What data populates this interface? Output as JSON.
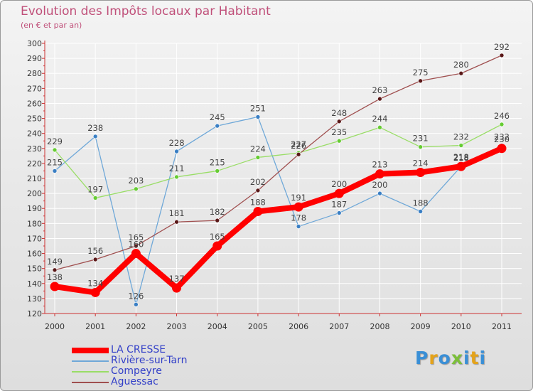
{
  "title": "Evolution des Impôts locaux par Habitant",
  "subtitle": "(en € et par an)",
  "logo": {
    "text": "Proxiti",
    "letters": [
      "P",
      "r",
      "o",
      "x",
      "i",
      "t",
      "i"
    ],
    "colors": [
      "#3a8fd6",
      "#e4a31a",
      "#3a8fd6",
      "#7cbf3a",
      "#3a8fd6",
      "#e4a31a",
      "#3a8fd6"
    ]
  },
  "chart_data": {
    "type": "line",
    "title": "Evolution des Impôts locaux par Habitant",
    "subtitle": "(en € et par an)",
    "xlabel": "",
    "ylabel": "",
    "categories": [
      "2000",
      "2001",
      "2002",
      "2003",
      "2004",
      "2005",
      "2006",
      "2007",
      "2008",
      "2009",
      "2010",
      "2011"
    ],
    "ylim": [
      120,
      300
    ],
    "yticks": [
      "120",
      "130",
      "140",
      "150",
      "160",
      "170",
      "180",
      "190",
      "200",
      "210",
      "220",
      "230",
      "240",
      "250",
      "260",
      "270",
      "280",
      "290",
      "300"
    ],
    "legend_position": "bottom-left",
    "series": [
      {
        "name": "LA CRESSE",
        "color": "#ff0000",
        "marker": "#ff0000",
        "values": [
          138,
          134,
          160,
          137,
          165,
          188,
          191,
          200,
          213,
          214,
          218,
          230
        ]
      },
      {
        "name": "Rivière-sur-Tarn",
        "color": "#6fa8d8",
        "marker": "#3a7fc4",
        "values": [
          215,
          238,
          126,
          228,
          245,
          251,
          178,
          187,
          200,
          188,
          218,
          232
        ]
      },
      {
        "name": "Compeyre",
        "color": "#99dd66",
        "marker": "#66cc33",
        "values": [
          229,
          197,
          203,
          211,
          215,
          224,
          227,
          235,
          244,
          231,
          232,
          246
        ]
      },
      {
        "name": "Aguessac",
        "color": "#a05050",
        "marker": "#5a1818",
        "values": [
          149,
          156,
          165,
          181,
          182,
          202,
          226,
          248,
          263,
          275,
          280,
          292
        ]
      }
    ]
  }
}
